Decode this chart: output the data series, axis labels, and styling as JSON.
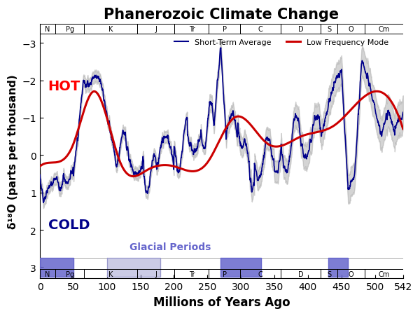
{
  "title": "Phanerozoic Climate Change",
  "xlabel": "Millions of Years Ago",
  "ylabel": "δ¹⁸O (parts per thousand)",
  "xlim": [
    0,
    542
  ],
  "ylim": [
    3.3,
    -3.5
  ],
  "yticks": [
    -3,
    -2,
    -1,
    0,
    1,
    2,
    3
  ],
  "xticks": [
    0,
    50,
    100,
    150,
    200,
    250,
    300,
    350,
    400,
    450,
    500,
    542
  ],
  "geo_periods": [
    {
      "name": "N",
      "start": 0,
      "end": 23
    },
    {
      "name": "Pg",
      "start": 23,
      "end": 66
    },
    {
      "name": "K",
      "start": 66,
      "end": 145
    },
    {
      "name": "J",
      "start": 145,
      "end": 201
    },
    {
      "name": "Tr",
      "start": 201,
      "end": 252
    },
    {
      "name": "P",
      "start": 252,
      "end": 299
    },
    {
      "name": "C",
      "start": 299,
      "end": 359
    },
    {
      "name": "D",
      "start": 359,
      "end": 419
    },
    {
      "name": "S",
      "start": 419,
      "end": 444
    },
    {
      "name": "O",
      "start": 444,
      "end": 485
    },
    {
      "name": "Cm",
      "start": 485,
      "end": 542
    }
  ],
  "glacial_periods": [
    {
      "start": 0,
      "end": 50,
      "color": "#6666cc",
      "alpha": 0.85
    },
    {
      "start": 100,
      "end": 180,
      "color": "#9999cc",
      "alpha": 0.5
    },
    {
      "start": 270,
      "end": 330,
      "color": "#6666cc",
      "alpha": 0.85
    },
    {
      "start": 430,
      "end": 460,
      "color": "#6666cc",
      "alpha": 0.85
    }
  ],
  "legend_blue_label": "Short-Term Average",
  "legend_red_label": "Low Frequency Mode",
  "hot_label": "HOT",
  "cold_label": "COLD",
  "glacial_label": "Glacial Periods",
  "line_color_blue": "#00008B",
  "line_color_red": "#CC0000",
  "shade_color": "#AAAAAA"
}
